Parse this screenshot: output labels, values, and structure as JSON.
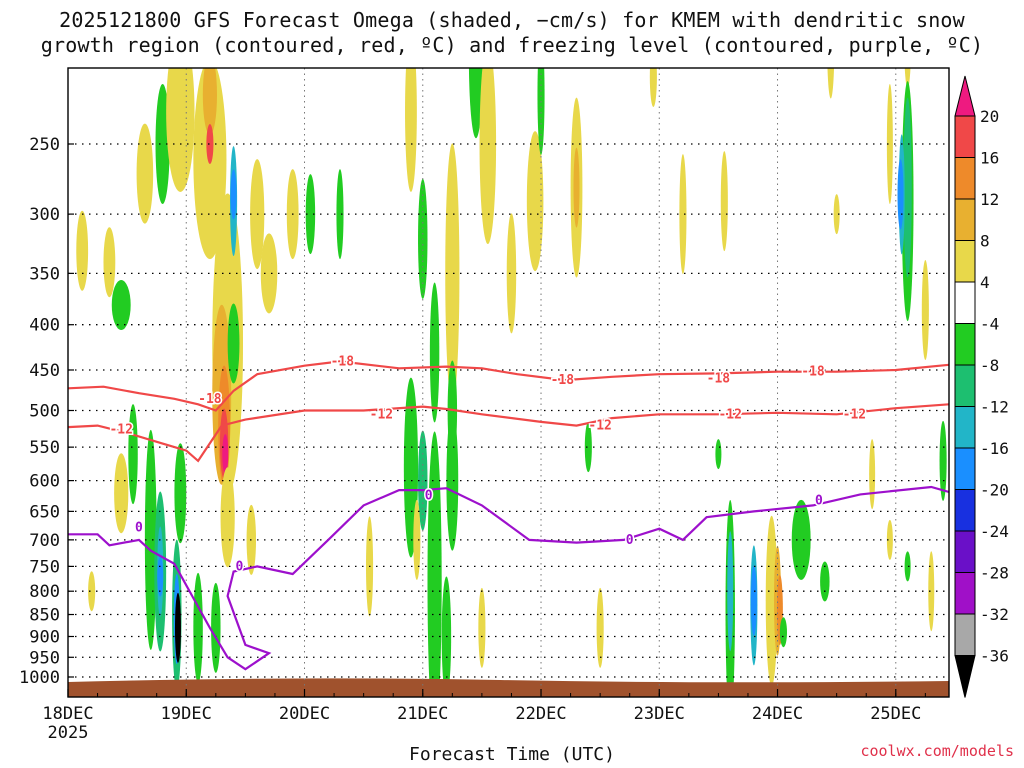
{
  "title_line1": "2025121800 GFS Forecast Omega (shaded, −cm/s) for KMEM with dendritic snow",
  "title_line2": "growth region (contoured, red, ºC) and freezing level (contoured, purple, ºC)",
  "credit": "coolwx.com/models",
  "colors": {
    "neg4_8": "#22cc22",
    "neg8_12": "#1dbf70",
    "neg12_16": "#22b5c8",
    "neg16_20": "#1a8fff",
    "neg20_24": "#1830e0",
    "neg24_28": "#6a10c8",
    "neg28_32": "#a010c8",
    "neg32_36": "#a8a8a8",
    "below36": "#000000",
    "pos4_8": "#e8d84a",
    "pos8_12": "#e8b030",
    "pos12_16": "#ee8a2a",
    "pos16_20": "#f04848",
    "above20": "#ee1a80",
    "dgz": "#f04848",
    "freezing": "#9d10cc",
    "ground": "#a0522d"
  },
  "chart_data": {
    "type": "heatmap",
    "xlabel": "Forecast Time (UTC)",
    "x_ticks": [
      "18DEC",
      "19DEC",
      "20DEC",
      "21DEC",
      "22DEC",
      "23DEC",
      "24DEC",
      "25DEC"
    ],
    "x_sublabel": "2025",
    "y_ticks": [
      250,
      300,
      350,
      400,
      450,
      500,
      550,
      600,
      650,
      700,
      750,
      800,
      850,
      900,
      950,
      1000
    ],
    "y_scale": "log-pressure",
    "ylim": [
      1030,
      200
    ],
    "xlim_days": [
      0,
      7.45
    ],
    "colorbar_levels": [
      20,
      16,
      12,
      8,
      4,
      -4,
      -8,
      -12,
      -16,
      -20,
      -24,
      -28,
      -32,
      -36
    ],
    "contours": [
      {
        "label": "-18",
        "color": "dgz",
        "points": [
          [
            0,
            472
          ],
          [
            0.3,
            470
          ],
          [
            0.6,
            478
          ],
          [
            0.9,
            485
          ],
          [
            1.1,
            492
          ],
          [
            1.25,
            500
          ],
          [
            1.4,
            475
          ],
          [
            1.6,
            455
          ],
          [
            2.0,
            445
          ],
          [
            2.3,
            440
          ],
          [
            2.8,
            448
          ],
          [
            3.2,
            446
          ],
          [
            3.5,
            448
          ],
          [
            3.8,
            455
          ],
          [
            4.2,
            462
          ],
          [
            4.6,
            458
          ],
          [
            5.0,
            455
          ],
          [
            5.5,
            454
          ],
          [
            6.0,
            452
          ],
          [
            6.5,
            452
          ],
          [
            7.0,
            450
          ],
          [
            7.45,
            444
          ]
        ],
        "labels_at": [
          [
            1.2,
            485
          ],
          [
            2.32,
            440
          ],
          [
            4.18,
            462
          ],
          [
            5.5,
            460
          ],
          [
            6.3,
            452
          ]
        ]
      },
      {
        "label": "-12",
        "color": "dgz",
        "points": [
          [
            0,
            522
          ],
          [
            0.25,
            520
          ],
          [
            0.5,
            530
          ],
          [
            0.8,
            545
          ],
          [
            1.0,
            555
          ],
          [
            1.1,
            570
          ],
          [
            1.3,
            520
          ],
          [
            1.5,
            512
          ],
          [
            2.0,
            500
          ],
          [
            2.5,
            500
          ],
          [
            3.0,
            495
          ],
          [
            3.2,
            498
          ],
          [
            3.5,
            505
          ],
          [
            4.0,
            515
          ],
          [
            4.3,
            520
          ],
          [
            4.6,
            510
          ],
          [
            5.0,
            505
          ],
          [
            5.5,
            505
          ],
          [
            6.0,
            503
          ],
          [
            6.5,
            505
          ],
          [
            7.0,
            497
          ],
          [
            7.45,
            492
          ]
        ],
        "labels_at": [
          [
            0.45,
            525
          ],
          [
            2.65,
            505
          ],
          [
            4.5,
            520
          ],
          [
            5.6,
            505
          ],
          [
            6.65,
            505
          ]
        ]
      },
      {
        "label": "0",
        "color": "freezing",
        "points": [
          [
            0,
            690
          ],
          [
            0.25,
            690
          ],
          [
            0.35,
            710
          ],
          [
            0.6,
            700
          ],
          [
            0.7,
            720
          ],
          [
            0.9,
            745
          ],
          [
            1.05,
            810
          ],
          [
            1.2,
            880
          ],
          [
            1.35,
            950
          ],
          [
            1.5,
            980
          ],
          [
            1.7,
            940
          ],
          [
            1.5,
            920
          ],
          [
            1.35,
            810
          ],
          [
            1.4,
            760
          ],
          [
            1.6,
            750
          ],
          [
            1.9,
            765
          ],
          [
            2.2,
            700
          ],
          [
            2.5,
            640
          ],
          [
            2.8,
            615
          ],
          [
            3.0,
            615
          ],
          [
            3.2,
            612
          ],
          [
            3.5,
            640
          ],
          [
            3.9,
            700
          ],
          [
            4.3,
            705
          ],
          [
            4.7,
            700
          ],
          [
            5.0,
            680
          ],
          [
            5.2,
            700
          ],
          [
            5.4,
            660
          ],
          [
            5.8,
            650
          ],
          [
            6.3,
            640
          ],
          [
            6.7,
            622
          ],
          [
            7.3,
            610
          ],
          [
            7.45,
            618
          ]
        ],
        "labels_at": [
          [
            0.6,
            678
          ],
          [
            1.45,
            750
          ],
          [
            3.05,
            624
          ],
          [
            4.75,
            700
          ],
          [
            6.35,
            632
          ]
        ]
      }
    ]
  }
}
